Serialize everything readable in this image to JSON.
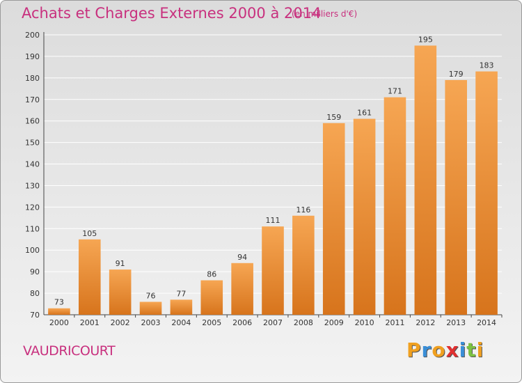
{
  "header": {
    "title": "Achats et Charges Externes 2000 à 2014",
    "subtitle": "(en milliers d'€)"
  },
  "footer": {
    "place": "VAUDRICOURT",
    "logo": "Proxiti"
  },
  "colors": {
    "title": "#c8307e",
    "bar_light": "#f6a653",
    "bar_dark": "#d7741c",
    "grid": "#ffffff",
    "logo_letters": [
      "#f0a020",
      "#3a8fd8",
      "#f0a020",
      "#e03030",
      "#3a8fd8",
      "#7cc142",
      "#f0a020"
    ]
  },
  "chart_data": {
    "type": "bar",
    "title": "Achats et Charges Externes 2000 à 2014",
    "subtitle": "(en milliers d'€)",
    "xlabel": "",
    "ylabel": "",
    "categories": [
      "2000",
      "2001",
      "2002",
      "2003",
      "2004",
      "2005",
      "2006",
      "2007",
      "2008",
      "2009",
      "2010",
      "2011",
      "2012",
      "2013",
      "2014"
    ],
    "values": [
      73,
      105,
      91,
      76,
      77,
      86,
      94,
      111,
      116,
      159,
      161,
      171,
      195,
      179,
      183
    ],
    "ylim": [
      70,
      200
    ],
    "yticks": [
      70,
      80,
      90,
      100,
      110,
      120,
      130,
      140,
      150,
      160,
      170,
      180,
      190,
      200
    ],
    "grid": true,
    "data_labels": true,
    "legend": "none"
  }
}
